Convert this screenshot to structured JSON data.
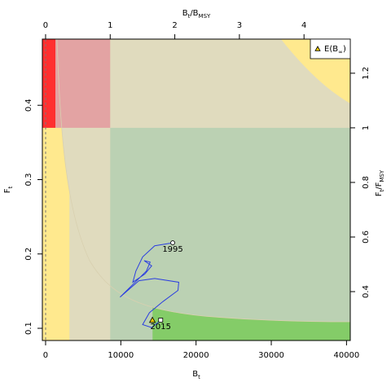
{
  "chart_data": {
    "type": "line",
    "x_label": [
      {
        "text": "B"
      },
      {
        "text": "t",
        "sub": true
      }
    ],
    "y_label": [
      {
        "text": "F"
      },
      {
        "text": "t",
        "sub": true
      }
    ],
    "x2_label": [
      {
        "text": "B"
      },
      {
        "text": "t",
        "sub": true
      },
      {
        "text": "/B"
      },
      {
        "text": "MSY",
        "sub": true
      }
    ],
    "y2_label": [
      {
        "text": "F"
      },
      {
        "text": "t",
        "sub": true
      },
      {
        "text": "/F"
      },
      {
        "text": "MSY",
        "sub": true
      }
    ],
    "xlim": [
      -430,
      40500
    ],
    "xticks": [
      0,
      10000,
      20000,
      30000,
      40000
    ],
    "ylim": [
      0.0836,
      0.489
    ],
    "yticks": [
      0.1,
      0.2,
      0.3,
      0.4
    ],
    "x2lim": [
      -0.05,
      4.716
    ],
    "x2ticks": [
      0,
      1,
      2,
      3,
      4
    ],
    "y2lim": [
      0.221,
      1.325
    ],
    "y2ticks": [
      0.4,
      0.6,
      0.8,
      1,
      1.2
    ],
    "series": [
      {
        "color": "#2b3ee0",
        "x": [
          16900,
          14500,
          12900,
          12000,
          11600,
          13200,
          14100,
          13100,
          13900,
          13400,
          11300,
          9900,
          12400,
          14500,
          17700,
          17600,
          15600,
          13800,
          12900,
          14100,
          15300
        ],
        "y": [
          0.215,
          0.211,
          0.196,
          0.177,
          0.162,
          0.173,
          0.184,
          0.191,
          0.189,
          0.177,
          0.156,
          0.142,
          0.164,
          0.167,
          0.162,
          0.151,
          0.136,
          0.121,
          0.105,
          0.101,
          0.111
        ],
        "start_label": "1995",
        "end_label": "2015"
      },
      {
        "name": [
          {
            "text": "E(B"
          },
          {
            "text": "∞",
            "sub": true
          },
          {
            "text": ")"
          }
        ],
        "color": "#e8c400",
        "marker": "triangle",
        "x": [
          14200
        ],
        "y": [
          0.111
        ]
      }
    ],
    "legend": "top-right"
  }
}
